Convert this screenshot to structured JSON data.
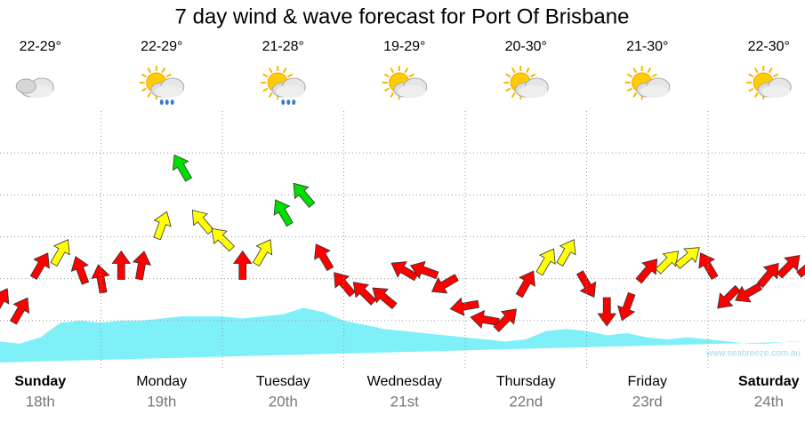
{
  "chart_data": {
    "type": "wind",
    "title": "7 day wind & wave forecast for Port Of Brisbane",
    "days": [
      {
        "name": "Sunday",
        "date": "18th",
        "temp": "22-29°",
        "icon": "cloudy",
        "bold": true
      },
      {
        "name": "Monday",
        "date": "19th",
        "temp": "22-29°",
        "icon": "sun-rain",
        "bold": false
      },
      {
        "name": "Tuesday",
        "date": "20th",
        "temp": "21-28°",
        "icon": "sun-rain",
        "bold": false
      },
      {
        "name": "Wednesday",
        "date": "21st",
        "temp": "19-29°",
        "icon": "sun-cloud",
        "bold": false
      },
      {
        "name": "Thursday",
        "date": "22nd",
        "temp": "20-30°",
        "icon": "sun-cloud",
        "bold": false
      },
      {
        "name": "Friday",
        "date": "23rd",
        "temp": "21-30°",
        "icon": "sun-cloud",
        "bold": false
      },
      {
        "name": "Saturday",
        "date": "24th",
        "temp": "22-30°",
        "icon": "sun-cloud",
        "bold": true
      }
    ],
    "x": [
      4,
      8,
      12,
      16,
      20,
      24,
      28,
      32,
      36,
      40,
      44,
      48,
      52,
      56,
      60,
      64,
      68,
      72,
      76,
      80,
      84,
      88,
      92,
      96,
      100,
      104,
      108,
      112,
      116,
      120,
      124,
      128,
      132,
      136,
      140,
      144,
      148,
      152,
      156,
      160,
      164
    ],
    "wind": {
      "values": [
        1.45,
        1.23,
        2.3,
        2.62,
        2.19,
        1.98,
        2.3,
        2.3,
        3.26,
        4.64,
        3.36,
        2.94,
        2.3,
        2.62,
        3.57,
        4.0,
        2.51,
        1.87,
        1.66,
        1.55,
        2.19,
        2.19,
        1.87,
        1.34,
        1.02,
        1.02,
        1.87,
        2.4,
        2.62,
        1.87,
        1.23,
        1.34,
        2.19,
        2.4,
        2.51,
        2.3,
        1.55,
        1.66,
        2.09,
        2.3,
        2.3
      ],
      "direction": [
        30,
        30,
        30,
        30,
        -20,
        -10,
        0,
        10,
        20,
        -30,
        -40,
        -45,
        0,
        30,
        -30,
        -40,
        -30,
        -40,
        -45,
        -50,
        -60,
        -70,
        -120,
        -100,
        -80,
        45,
        30,
        30,
        30,
        150,
        180,
        200,
        40,
        45,
        50,
        -30,
        -135,
        -120,
        40,
        45,
        50
      ],
      "colors": [
        "#ff0000",
        "#ff0000",
        "#ff0000",
        "#ffff00",
        "#ff0000",
        "#ff0000",
        "#ff0000",
        "#ff0000",
        "#ffff00",
        "#00dd00",
        "#ffff00",
        "#ffff00",
        "#ff0000",
        "#ffff00",
        "#00dd00",
        "#00dd00",
        "#ff0000",
        "#ff0000",
        "#ff0000",
        "#ff0000",
        "#ff0000",
        "#ff0000",
        "#ff0000",
        "#ff0000",
        "#ff0000",
        "#ff0000",
        "#ff0000",
        "#ffff00",
        "#ffff00",
        "#ff0000",
        "#ff0000",
        "#ff0000",
        "#ff0000",
        "#ffff00",
        "#ffff00",
        "#ff0000",
        "#ff0000",
        "#ff0000",
        "#ff0000",
        "#ff0000",
        "#ff0000"
      ]
    },
    "wave": {
      "color": "#7ff0f8",
      "values": [
        0.5,
        0.45,
        0.6,
        0.95,
        1.0,
        0.95,
        1.0,
        1.0,
        1.05,
        1.1,
        1.1,
        1.1,
        1.05,
        1.1,
        1.15,
        1.3,
        1.2,
        1.0,
        0.9,
        0.8,
        0.75,
        0.7,
        0.65,
        0.6,
        0.55,
        0.5,
        0.55,
        0.75,
        0.8,
        0.75,
        0.65,
        0.7,
        0.6,
        0.55,
        0.6,
        0.55,
        0.5,
        0.45,
        0.45,
        0.5,
        0.5
      ]
    },
    "xlim": [
      0,
      168
    ],
    "ylim": [
      0,
      6
    ],
    "yticks": [
      1,
      2,
      3,
      4,
      5
    ],
    "grid": true,
    "watermark": "www.seabreeze.com.au"
  }
}
